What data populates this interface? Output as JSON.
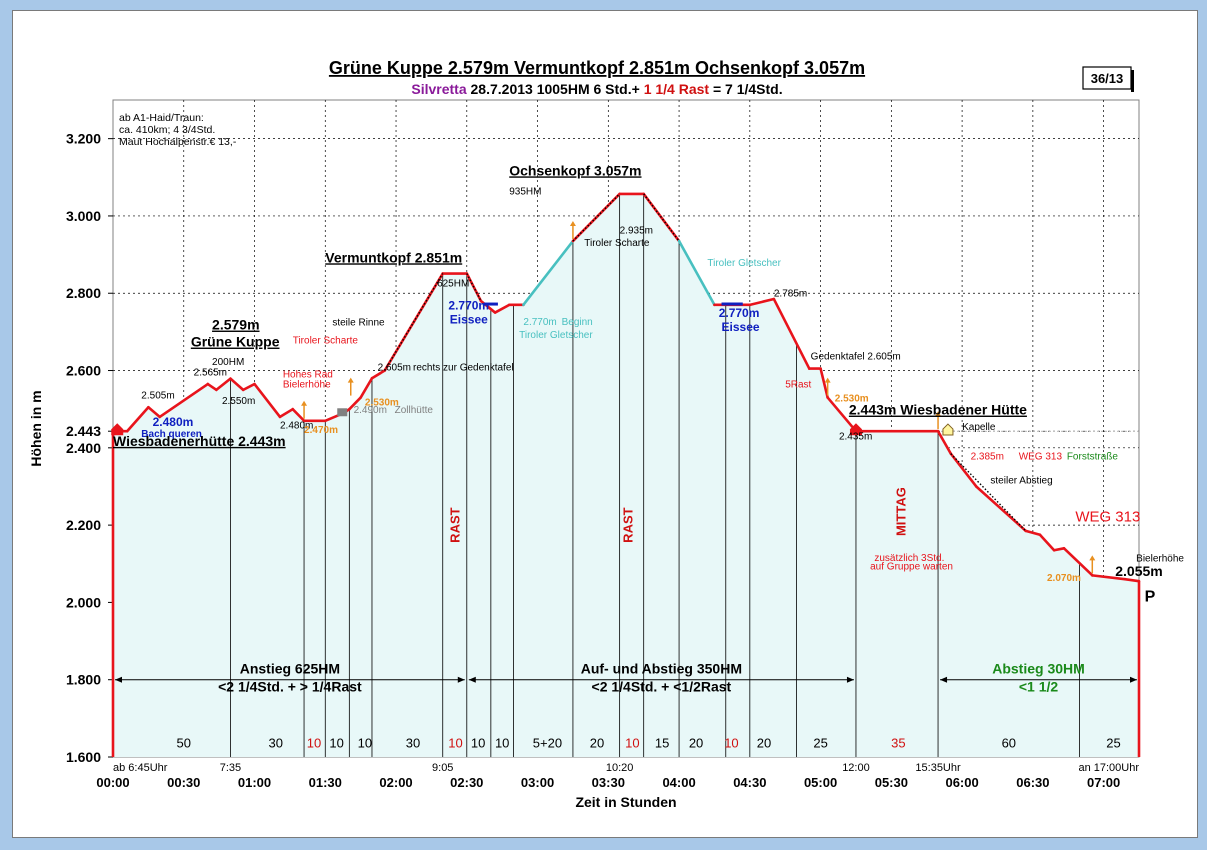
{
  "page_id": "36/13",
  "header": {
    "title_parts": [
      "Grüne Kuppe 2.579m",
      "Vermuntkopf 2.851m",
      "Ochsenkopf 3.057m"
    ],
    "region": "Silvretta",
    "date": "28.7.2013",
    "hm": "1005HM",
    "time_a": "6 Std.+",
    "time_rast": "1 1/4 Rast",
    "time_total": "= 7 1/4Std."
  },
  "info_box": [
    "ab A1-Haid/Traun:",
    "ca. 410km; 4 3/4Std.",
    "Maut Hochalpenstr.€ 13,-"
  ],
  "colors": {
    "profile": "#e8141c",
    "fill": "#e8f8f8",
    "glacier": "#48c0c0",
    "eissee": "#1020c0",
    "rast": "#d01010",
    "green": "#1a8a1a",
    "orange": "#e89020",
    "purple": "#8a1a9a",
    "grey": "#808080"
  },
  "chart_data": {
    "type": "area",
    "title": "",
    "xlabel": "Zeit in Stunden",
    "ylabel": "Höhen in m",
    "xlim": [
      0,
      7.25
    ],
    "ylim": [
      1600,
      3300
    ],
    "y_ticks": [
      {
        "v": 1600,
        "label": "1.600"
      },
      {
        "v": 1800,
        "label": "1.800"
      },
      {
        "v": 2000,
        "label": "2.000"
      },
      {
        "v": 2200,
        "label": "2.200"
      },
      {
        "v": 2400,
        "label": "2.400"
      },
      {
        "v": 2443,
        "label": "2.443"
      },
      {
        "v": 2600,
        "label": "2.600"
      },
      {
        "v": 2800,
        "label": "2.800"
      },
      {
        "v": 3000,
        "label": "3.000"
      },
      {
        "v": 3200,
        "label": "3.200"
      }
    ],
    "x_ticks": [
      {
        "v": 0,
        "label": "00:00"
      },
      {
        "v": 0.5,
        "label": "00:30"
      },
      {
        "v": 1,
        "label": "01:00"
      },
      {
        "v": 1.5,
        "label": "01:30"
      },
      {
        "v": 2,
        "label": "02:00"
      },
      {
        "v": 2.5,
        "label": "02:30"
      },
      {
        "v": 3,
        "label": "03:00"
      },
      {
        "v": 3.5,
        "label": "03:30"
      },
      {
        "v": 4,
        "label": "04:00"
      },
      {
        "v": 4.5,
        "label": "04:30"
      },
      {
        "v": 5,
        "label": "05:00"
      },
      {
        "v": 5.5,
        "label": "05:30"
      },
      {
        "v": 6,
        "label": "06:00"
      },
      {
        "v": 6.5,
        "label": "06:30"
      },
      {
        "v": 7,
        "label": "07:00"
      }
    ],
    "clock_labels": [
      {
        "v": 0,
        "label": "ab 6:45Uhr"
      },
      {
        "v": 0.83,
        "label": "7:35"
      },
      {
        "v": 2.33,
        "label": "9:05"
      },
      {
        "v": 3.58,
        "label": "10:20"
      },
      {
        "v": 5.25,
        "label": "12:00"
      },
      {
        "v": 5.83,
        "label": "15:35Uhr"
      },
      {
        "v": 7.25,
        "label": "an 17:00Uhr"
      }
    ],
    "grid": true,
    "series": [
      {
        "values": [
          [
            0,
            2443
          ],
          [
            0.1,
            2443
          ],
          [
            0.25,
            2505
          ],
          [
            0.33,
            2480
          ],
          [
            0.67,
            2565
          ],
          [
            0.73,
            2550
          ],
          [
            0.83,
            2579
          ],
          [
            0.92,
            2550
          ],
          [
            1.0,
            2565
          ],
          [
            1.18,
            2480
          ],
          [
            1.27,
            2500
          ],
          [
            1.35,
            2470
          ],
          [
            1.5,
            2470
          ],
          [
            1.63,
            2490
          ],
          [
            1.67,
            2500
          ],
          [
            1.75,
            2530
          ],
          [
            1.83,
            2580
          ],
          [
            1.92,
            2600
          ],
          [
            2.33,
            2851
          ],
          [
            2.5,
            2851
          ],
          [
            2.6,
            2780
          ],
          [
            2.7,
            2750
          ],
          [
            2.8,
            2770
          ],
          [
            2.9,
            2770
          ],
          [
            3.25,
            2935
          ],
          [
            3.58,
            3057
          ],
          [
            3.75,
            3057
          ],
          [
            4.0,
            2935
          ],
          [
            4.25,
            2770
          ],
          [
            4.33,
            2770
          ],
          [
            4.5,
            2770
          ],
          [
            4.67,
            2785
          ],
          [
            4.92,
            2605
          ],
          [
            5.0,
            2605
          ],
          [
            5.05,
            2530
          ],
          [
            5.25,
            2443
          ],
          [
            5.5,
            2443
          ],
          [
            5.83,
            2443
          ],
          [
            5.92,
            2385
          ],
          [
            6.1,
            2300
          ],
          [
            6.45,
            2185
          ],
          [
            6.55,
            2175
          ],
          [
            6.65,
            2135
          ],
          [
            6.72,
            2140
          ],
          [
            6.92,
            2070
          ],
          [
            7.15,
            2060
          ],
          [
            7.25,
            2055
          ]
        ]
      }
    ],
    "labels": [
      {
        "t": "2.505m",
        "x": 0.2,
        "y": 2527
      },
      {
        "t": "2.565m",
        "x": 0.57,
        "y": 2587
      },
      {
        "t": "2.550m",
        "x": 0.77,
        "y": 2513
      },
      {
        "t": "2.480m",
        "x": 1.18,
        "y": 2450
      },
      {
        "t": "2.480m",
        "x": 0.28,
        "y": 2457,
        "color": "eissee"
      },
      {
        "t": "Bach queren",
        "x": 0.2,
        "y": 2428,
        "color": "eissee"
      },
      {
        "t": "2.470m",
        "x": 1.35,
        "y": 2438,
        "color": "orange"
      },
      {
        "t": "2.530m",
        "x": 1.78,
        "y": 2510,
        "color": "orange"
      },
      {
        "t": "2.530m",
        "x": 5.1,
        "y": 2520,
        "color": "orange"
      },
      {
        "t": "2.070m",
        "x": 6.6,
        "y": 2055,
        "color": "orange"
      },
      {
        "t": "Hohes Rad",
        "x": 1.2,
        "y": 2582,
        "color": "profile"
      },
      {
        "t": "Bielerhöhe",
        "x": 1.2,
        "y": 2556,
        "color": "profile"
      },
      {
        "t": "Tiroler Scharte",
        "x": 1.27,
        "y": 2670,
        "color": "profile"
      },
      {
        "t": "steile Rinne",
        "x": 1.55,
        "y": 2716
      },
      {
        "t": "2.605m",
        "x": 1.87,
        "y": 2600
      },
      {
        "t": "rechts zur Gedenktafel",
        "x": 2.12,
        "y": 2600
      },
      {
        "t": "2.490m",
        "x": 1.7,
        "y": 2490,
        "color": "grey"
      },
      {
        "t": "Zollhütte",
        "x": 1.99,
        "y": 2490,
        "color": "grey"
      },
      {
        "t": "200HM",
        "x": 0.7,
        "y": 2614
      },
      {
        "t": "625HM",
        "x": 2.29,
        "y": 2818
      },
      {
        "t": "935HM",
        "x": 2.8,
        "y": 3055
      },
      {
        "t": "2.770m",
        "x": 2.37,
        "y": 2758,
        "color": "eissee"
      },
      {
        "t": "Eissee",
        "x": 2.38,
        "y": 2722,
        "color": "eissee"
      },
      {
        "t": "2.770m",
        "x": 2.9,
        "y": 2718,
        "color": "glacier"
      },
      {
        "t": "Beginn",
        "x": 3.17,
        "y": 2718,
        "color": "glacier"
      },
      {
        "t": "Tiroler Gletscher",
        "x": 2.87,
        "y": 2684,
        "color": "glacier"
      },
      {
        "t": "2.935m",
        "x": 3.58,
        "y": 2955
      },
      {
        "t": "Tiroler Scharte",
        "x": 3.33,
        "y": 2922
      },
      {
        "t": "Tiroler Gletscher",
        "x": 4.2,
        "y": 2870,
        "color": "glacier"
      },
      {
        "t": "2.785m",
        "x": 4.67,
        "y": 2792
      },
      {
        "t": "2.770m",
        "x": 4.28,
        "y": 2738,
        "color": "eissee"
      },
      {
        "t": "Eissee",
        "x": 4.3,
        "y": 2702,
        "color": "eissee"
      },
      {
        "t": "Gedenktafel 2.605m",
        "x": 4.93,
        "y": 2628
      },
      {
        "t": "5Rast",
        "x": 4.75,
        "y": 2556,
        "color": "profile"
      },
      {
        "t": "2.435m",
        "x": 5.13,
        "y": 2421
      },
      {
        "t": "Kapelle",
        "x": 6.0,
        "y": 2446
      },
      {
        "t": "2.385m",
        "x": 6.06,
        "y": 2370,
        "color": "profile"
      },
      {
        "t": "WEG 313",
        "x": 6.4,
        "y": 2370,
        "color": "profile"
      },
      {
        "t": "Forststraße",
        "x": 6.74,
        "y": 2370,
        "color": "green"
      },
      {
        "t": "steiler Abstieg",
        "x": 6.2,
        "y": 2308
      },
      {
        "t": "WEG 313",
        "x": 6.8,
        "y": 2210,
        "color": "profile"
      },
      {
        "t": "zusätzlich 3Std.",
        "x": 5.38,
        "y": 2107,
        "color": "profile"
      },
      {
        "t": "auf Gruppe warten",
        "x": 5.35,
        "y": 2085,
        "color": "profile"
      },
      {
        "t": "Bielerhöhe",
        "x": 7.23,
        "y": 2106
      },
      {
        "t": "2.055m",
        "x": 7.25,
        "y": 2068
      },
      {
        "t": "P",
        "x": 7.29,
        "y": 2003
      },
      {
        "t": "Wiesbadenerhütte 2.443m",
        "x": 0.0,
        "y": 2405,
        "u": true
      },
      {
        "t": "2.579m",
        "x": 0.7,
        "y": 2706,
        "u": true
      },
      {
        "t": "Grüne Kuppe",
        "x": 0.55,
        "y": 2662,
        "u": true
      },
      {
        "t": "Vermuntkopf  2.851m",
        "x": 1.5,
        "y": 2880,
        "u": true
      },
      {
        "t": "Ochsenkopf  3.057m",
        "x": 2.8,
        "y": 3105,
        "u": true
      },
      {
        "t": "2.443m Wiesbadener Hütte",
        "x": 5.2,
        "y": 2486,
        "u": true
      }
    ],
    "rast": [
      {
        "t": "RAST",
        "x": 2.45,
        "y": 2200
      },
      {
        "t": "RAST",
        "x": 3.67,
        "y": 2200
      },
      {
        "t": "MITTAG",
        "x": 5.6,
        "y": 2235
      }
    ],
    "phases": [
      {
        "from": 0,
        "to": 2.5,
        "t1": "Anstieg 625HM",
        "t2": "<2 1/4Std. + > 1/4Rast"
      },
      {
        "from": 2.5,
        "to": 5.25,
        "t1": "Auf- und Abstieg 350HM",
        "t2": "<2 1/4Std. + <1/2Rast"
      },
      {
        "from": 5.83,
        "to": 7.25,
        "t1": "Abstieg 30HM",
        "t2": "<1 1/2"
      }
    ],
    "segments": [
      {
        "x": 0.5,
        "t": "50"
      },
      {
        "x": 1.15,
        "t": "30"
      },
      {
        "x": 1.42,
        "t": "10",
        "c": "rast"
      },
      {
        "x": 1.58,
        "t": "10"
      },
      {
        "x": 1.78,
        "t": "10"
      },
      {
        "x": 2.12,
        "t": "30"
      },
      {
        "x": 2.42,
        "t": "10",
        "c": "rast"
      },
      {
        "x": 2.58,
        "t": "10"
      },
      {
        "x": 2.75,
        "t": "10"
      },
      {
        "x": 3.07,
        "t": "5+20",
        "c": "mix"
      },
      {
        "x": 3.42,
        "t": "20"
      },
      {
        "x": 3.67,
        "t": "10",
        "c": "rast"
      },
      {
        "x": 3.88,
        "t": "15"
      },
      {
        "x": 4.12,
        "t": "20"
      },
      {
        "x": 4.37,
        "t": "10",
        "c": "rast"
      },
      {
        "x": 4.6,
        "t": "20"
      },
      {
        "x": 5.0,
        "t": "25"
      },
      {
        "x": 5.55,
        "t": "35",
        "c": "rast"
      },
      {
        "x": 6.33,
        "t": "60"
      },
      {
        "x": 7.07,
        "t": "25"
      }
    ],
    "vlines": [
      0.83,
      1.35,
      1.5,
      1.67,
      1.83,
      2.33,
      2.5,
      2.67,
      2.83,
      3.25,
      3.58,
      3.75,
      4.0,
      4.33,
      4.5,
      4.83,
      5.25,
      5.83,
      6.83
    ]
  }
}
